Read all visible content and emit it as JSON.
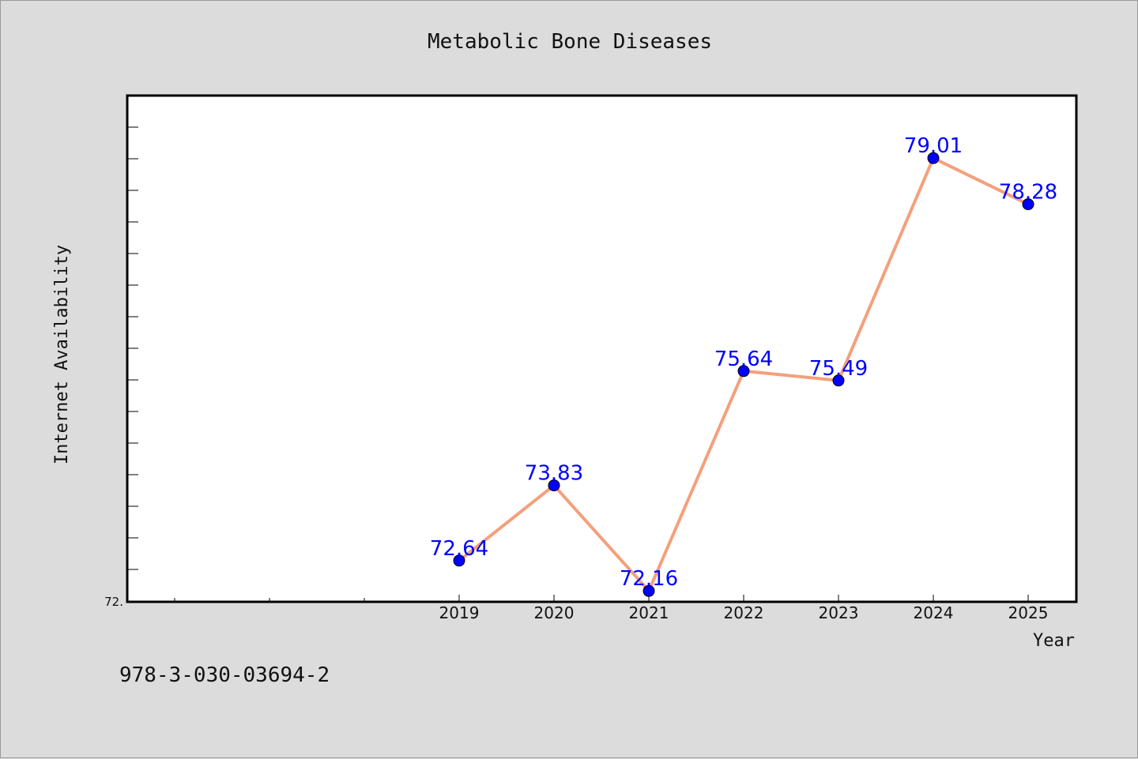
{
  "chart_data": {
    "type": "line",
    "title": "Metabolic Bone Diseases",
    "xlabel": "Year",
    "ylabel": "Internet Availability",
    "categories": [
      "2019",
      "2020",
      "2021",
      "2022",
      "2023",
      "2024",
      "2025"
    ],
    "series": [
      {
        "values": [
          72.64,
          73.83,
          72.16,
          75.64,
          75.49,
          79.01,
          78.28
        ],
        "data_labels": [
          "72.64",
          "73.83",
          "72.16",
          "75.64",
          "75.49",
          "79.01",
          "78.28"
        ]
      }
    ],
    "ylim": [
      72,
      80
    ],
    "y_tick_labels": [
      "72."
    ],
    "line_color": "#f4a07c",
    "marker_color": "#0000ff",
    "label_color": "#0000ff",
    "grid": false
  },
  "footnote": "978-3-030-03694-2"
}
